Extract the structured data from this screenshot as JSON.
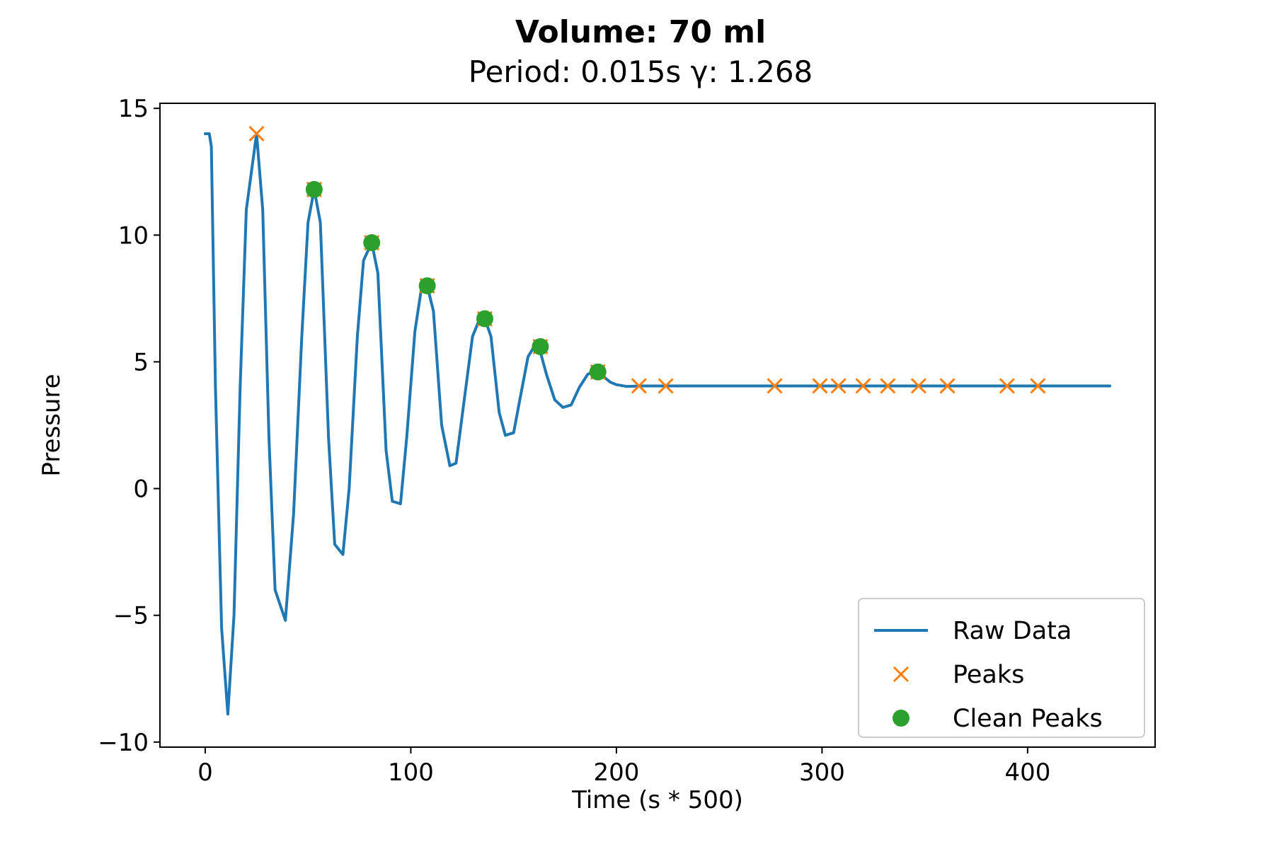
{
  "chart_data": {
    "type": "line",
    "title": "Volume: 70 ml",
    "subtitle": "Period: 0.015s γ: 1.268",
    "xlabel": "Time (s * 500)",
    "ylabel": "Pressure",
    "xlim": [
      -22,
      462
    ],
    "ylim": [
      -10.2,
      15.2
    ],
    "xticks": [
      0,
      100,
      200,
      300,
      400
    ],
    "yticks": [
      15,
      10,
      5,
      0,
      -5,
      -10
    ],
    "xtick_labels": [
      "0",
      "100",
      "200",
      "300",
      "400"
    ],
    "ytick_labels": [
      "15",
      "10",
      "5",
      "0",
      "−5",
      "−10"
    ],
    "grid": false,
    "legend_position": "lower-right",
    "colors": {
      "raw": "#1f77b4",
      "peaks": "#ff7f0e",
      "clean": "#2ca02c"
    },
    "legend": [
      "Raw Data",
      "Peaks",
      "Clean Peaks"
    ],
    "series": [
      {
        "name": "Raw Data",
        "kind": "line",
        "x": [
          0,
          2,
          3,
          5,
          8,
          11,
          14,
          17,
          20,
          25,
          28,
          31,
          34,
          39,
          43,
          47,
          50,
          53,
          56,
          60,
          63,
          67,
          70,
          74,
          77,
          81,
          84,
          88,
          91,
          95,
          98,
          102,
          105,
          108,
          111,
          115,
          119,
          122,
          126,
          130,
          133,
          136,
          139,
          143,
          146,
          150,
          153,
          157,
          160,
          163,
          166,
          170,
          174,
          178,
          182,
          186,
          189,
          191,
          194,
          197,
          200,
          205,
          212,
          225,
          250,
          300,
          350,
          400,
          440
        ],
        "y": [
          14,
          14,
          13.5,
          4,
          -5.5,
          -8.9,
          -5,
          4,
          11,
          14,
          11,
          2,
          -4,
          -5.2,
          -1,
          6,
          10.5,
          11.8,
          10.5,
          2,
          -2.2,
          -2.6,
          0,
          6,
          9,
          9.7,
          8.5,
          1.5,
          -0.5,
          -0.6,
          2,
          6.2,
          7.8,
          8,
          7,
          2.5,
          0.9,
          1,
          3.5,
          6,
          6.6,
          6.7,
          6,
          3,
          2.1,
          2.2,
          3.5,
          5.2,
          5.6,
          5.4,
          4.5,
          3.5,
          3.2,
          3.3,
          4,
          4.5,
          4.65,
          4.6,
          4.4,
          4.2,
          4.1,
          4.03,
          4.05,
          4.05,
          4.05,
          4.05,
          4.05,
          4.05,
          4.05
        ]
      },
      {
        "name": "Peaks",
        "kind": "marker-x",
        "x": [
          25,
          53,
          81,
          108,
          136,
          163,
          191,
          211,
          224,
          277,
          299,
          308,
          320,
          332,
          347,
          361,
          390,
          405
        ],
        "y": [
          14,
          11.8,
          9.7,
          8.0,
          6.7,
          5.6,
          4.6,
          4.05,
          4.05,
          4.05,
          4.05,
          4.05,
          4.05,
          4.05,
          4.05,
          4.05,
          4.05,
          4.05
        ]
      },
      {
        "name": "Clean Peaks",
        "kind": "marker-dot",
        "x": [
          53,
          81,
          108,
          136,
          163,
          191
        ],
        "y": [
          11.8,
          9.7,
          8.0,
          6.7,
          5.6,
          4.6
        ]
      }
    ]
  }
}
